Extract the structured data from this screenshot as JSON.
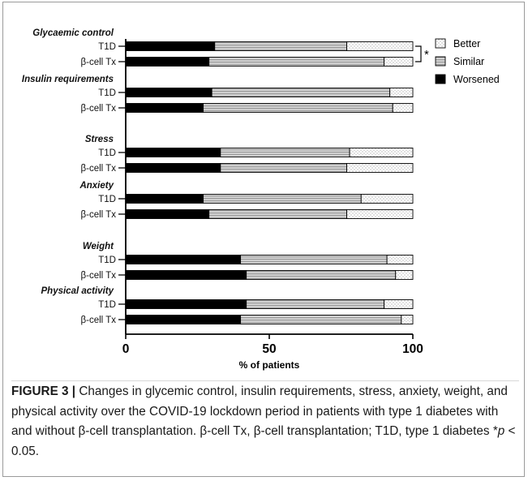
{
  "colors": {
    "better": "#ffffff",
    "similar": "#bdbdbd",
    "worsened": "#000000"
  },
  "chart_data": {
    "type": "bar",
    "orientation": "horizontal",
    "stacked": true,
    "xlabel": "% of patients",
    "xlim": [
      0,
      100
    ],
    "xticks": [
      "0",
      "50",
      "100"
    ],
    "legend": {
      "placement": "top-right",
      "entries": [
        "Better",
        "Similar",
        "Worsened"
      ]
    },
    "series_names": [
      "Worsened",
      "Similar",
      "Better"
    ],
    "groups": [
      {
        "title": "Glycaemic control",
        "rows": [
          {
            "label": "T1D",
            "worsened": 31,
            "similar": 46,
            "better": 23
          },
          {
            "label": "β-cell Tx",
            "worsened": 29,
            "similar": 61,
            "better": 10
          }
        ]
      },
      {
        "title": "Insulin requirements",
        "rows": [
          {
            "label": "T1D",
            "worsened": 30,
            "similar": 62,
            "better": 8
          },
          {
            "label": "β-cell Tx",
            "worsened": 27,
            "similar": 66,
            "better": 7
          }
        ]
      },
      {
        "title": "Stress",
        "rows": [
          {
            "label": "T1D",
            "worsened": 33,
            "similar": 45,
            "better": 22
          },
          {
            "label": "β-cell Tx",
            "worsened": 33,
            "similar": 44,
            "better": 23
          }
        ]
      },
      {
        "title": "Anxiety",
        "rows": [
          {
            "label": "T1D",
            "worsened": 27,
            "similar": 55,
            "better": 18
          },
          {
            "label": "β-cell Tx",
            "worsened": 29,
            "similar": 48,
            "better": 23
          }
        ]
      },
      {
        "title": "Weight",
        "rows": [
          {
            "label": "T1D",
            "worsened": 40,
            "similar": 51,
            "better": 9
          },
          {
            "label": "β-cell Tx",
            "worsened": 42,
            "similar": 52,
            "better": 6
          }
        ]
      },
      {
        "title": "Physical activity",
        "rows": [
          {
            "label": "T1D",
            "worsened": 42,
            "similar": 48,
            "better": 10
          },
          {
            "label": "β-cell Tx",
            "worsened": 40,
            "similar": 56,
            "better": 4
          }
        ]
      }
    ],
    "annotations": [
      {
        "text": "*",
        "target": "Glycaemic control"
      }
    ]
  },
  "caption": {
    "label": "FIGURE 3 |",
    "text": " Changes in glycemic control, insulin requirements, stress, anxiety, weight, and physical activity over the COVID-19 lockdown period in patients with type 1 diabetes with and without β-cell transplantation. β-cell Tx, β-cell transplantation; T1D, type 1 diabetes *",
    "p_symbol": "p",
    "p_suffix": " < 0.05."
  }
}
